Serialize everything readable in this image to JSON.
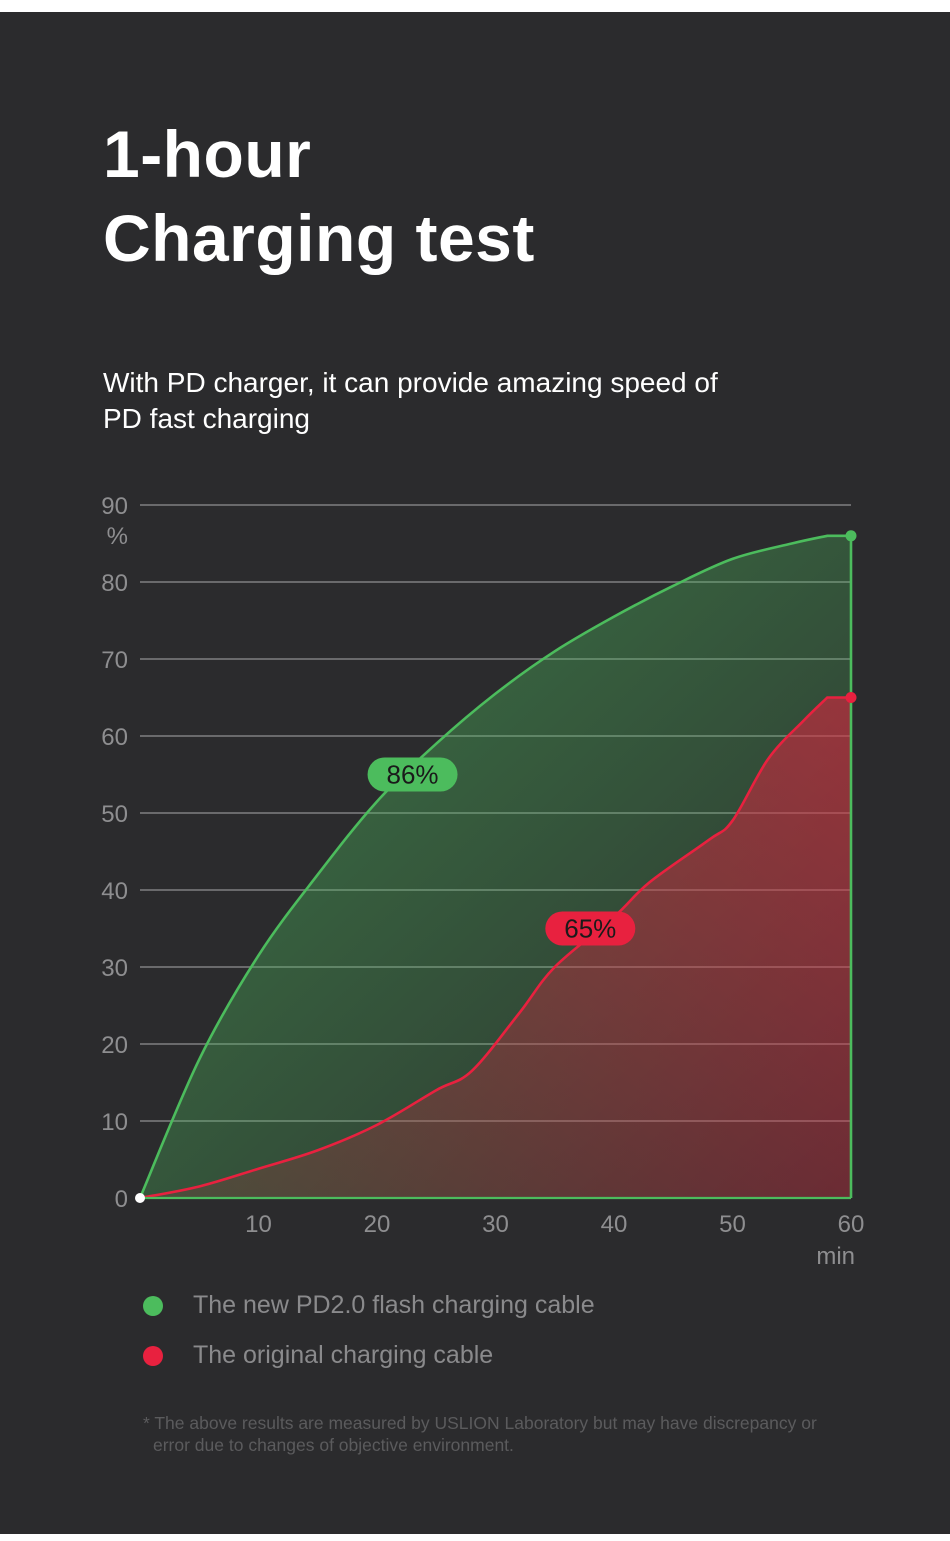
{
  "title": [
    "1-hour",
    "Charging test"
  ],
  "subtitle": [
    "With PD charger, it can provide amazing speed of",
    "PD fast charging"
  ],
  "chart_data": {
    "type": "area",
    "title": "",
    "xlabel": "min",
    "ylabel": "%",
    "xlim": [
      0,
      60
    ],
    "ylim": [
      0,
      90
    ],
    "x_ticks": [
      10,
      20,
      30,
      40,
      50,
      60
    ],
    "y_ticks": [
      0,
      10,
      20,
      30,
      40,
      50,
      60,
      70,
      80,
      90
    ],
    "grid": true,
    "series": [
      {
        "name": "The new PD2.0 flash charging cable",
        "color": "#4cbc5d",
        "x": [
          0,
          5,
          10,
          15,
          20,
          25,
          30,
          35,
          40,
          45,
          50,
          55,
          58
        ],
        "y": [
          0,
          18,
          31.5,
          42,
          51.5,
          59,
          65.5,
          71,
          75.5,
          79.5,
          83,
          85,
          86
        ],
        "callout": {
          "text": "86%",
          "x": 23,
          "y": 55
        }
      },
      {
        "name": "The original charging cable",
        "color": "#e8213f",
        "x": [
          0,
          5,
          10,
          15,
          20,
          25,
          28,
          32,
          35,
          40,
          43,
          48,
          50,
          53,
          56,
          58
        ],
        "y": [
          0,
          1.5,
          3.8,
          6.2,
          9.5,
          14,
          16.5,
          24,
          30,
          36.5,
          41,
          46.5,
          49,
          57,
          62,
          65
        ],
        "callout": {
          "text": "65%",
          "x": 38,
          "y": 35
        }
      }
    ]
  },
  "legend": [
    {
      "label": "The new PD2.0 flash charging cable",
      "color": "#4cbc5d"
    },
    {
      "label": "The original charging cable",
      "color": "#e8213f"
    }
  ],
  "footnote": [
    "* The above results are measured by USLION Laboratory but may have discrepancy or",
    "error due to changes of objective environment."
  ]
}
